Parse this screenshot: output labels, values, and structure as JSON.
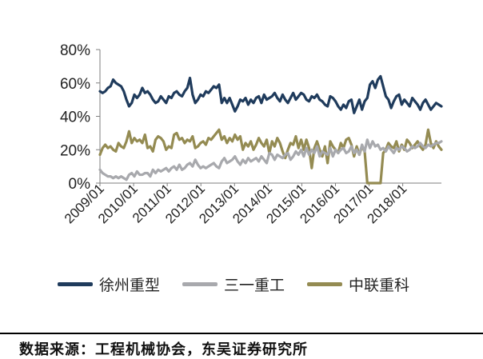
{
  "chart_data": {
    "type": "line",
    "x_labels": [
      "2009/01",
      "2010/01",
      "2011/01",
      "2012/01",
      "2013/01",
      "2014/01",
      "2015/01",
      "2016/01",
      "2017/01",
      "2018/01"
    ],
    "y_ticks": [
      "0%",
      "20%",
      "40%",
      "60%",
      "80%"
    ],
    "ylim": [
      0,
      80
    ],
    "grid": false,
    "legend_position": "bottom",
    "series": [
      {
        "name": "徐州重型",
        "color": "#1f3b5c",
        "values": [
          55,
          54,
          55,
          57,
          58,
          62,
          60,
          59,
          58,
          55,
          50,
          46,
          48,
          53,
          51,
          53,
          57,
          54,
          55,
          53,
          50,
          48,
          49,
          52,
          50,
          48,
          52,
          51,
          54,
          55,
          53,
          52,
          55,
          57,
          63,
          53,
          48,
          50,
          53,
          52,
          55,
          54,
          56,
          58,
          57,
          59,
          48,
          51,
          48,
          51,
          47,
          43,
          46,
          50,
          49,
          51,
          47,
          50,
          48,
          51,
          52,
          48,
          53,
          50,
          51,
          52,
          54,
          51,
          49,
          53,
          50,
          48,
          51,
          54,
          50,
          52,
          54,
          53,
          50,
          49,
          52,
          51,
          53,
          50,
          49,
          47,
          46,
          52,
          51,
          49,
          46,
          44,
          47,
          45,
          49,
          50,
          42,
          46,
          50,
          44,
          49,
          51,
          59,
          61,
          57,
          62,
          64,
          58,
          52,
          50,
          45,
          49,
          52,
          53,
          47,
          50,
          48,
          46,
          51,
          49,
          47,
          44,
          48,
          50,
          47,
          44,
          46,
          48,
          47,
          46
        ]
      },
      {
        "name": "三一重工",
        "color": "#a8a9ad",
        "values": [
          8,
          6,
          5,
          4,
          4,
          3,
          4,
          3,
          4,
          3,
          2,
          5,
          6,
          4,
          7,
          5,
          5,
          6,
          6,
          4,
          8,
          6,
          8,
          7,
          8,
          9,
          7,
          9,
          10,
          8,
          11,
          8,
          9,
          11,
          12,
          10,
          14,
          11,
          9,
          10,
          9,
          10,
          11,
          12,
          10,
          9,
          13,
          15,
          12,
          13,
          14,
          16,
          13,
          11,
          14,
          12,
          15,
          13,
          14,
          15,
          13,
          16,
          14,
          12,
          18,
          17,
          14,
          17,
          16,
          15,
          17,
          18,
          14,
          16,
          19,
          17,
          20,
          16,
          21,
          17,
          20,
          18,
          22,
          16,
          19,
          18,
          17,
          21,
          16,
          20,
          18,
          20,
          21,
          18,
          19,
          22,
          18,
          20,
          17,
          23,
          19,
          26,
          21,
          25,
          22,
          23,
          20,
          21,
          19,
          22,
          20,
          18,
          21,
          20,
          22,
          21,
          19,
          20,
          22,
          21,
          22,
          24,
          22,
          21,
          23,
          22,
          23,
          24,
          24,
          25
        ]
      },
      {
        "name": "中联重科",
        "color": "#948b52",
        "values": [
          17,
          21,
          23,
          21,
          22,
          20,
          19,
          24,
          22,
          21,
          25,
          31,
          24,
          27,
          25,
          26,
          24,
          29,
          21,
          22,
          19,
          26,
          28,
          27,
          25,
          20,
          22,
          21,
          29,
          30,
          26,
          27,
          24,
          26,
          25,
          28,
          21,
          22,
          24,
          25,
          23,
          27,
          26,
          28,
          30,
          32,
          26,
          28,
          24,
          27,
          25,
          29,
          26,
          28,
          20,
          24,
          22,
          25,
          20,
          23,
          27,
          24,
          22,
          26,
          18,
          25,
          22,
          27,
          24,
          19,
          15,
          20,
          24,
          23,
          28,
          21,
          26,
          20,
          26,
          21,
          9,
          21,
          25,
          20,
          16,
          22,
          12,
          25,
          22,
          20,
          18,
          24,
          21,
          26,
          27,
          23,
          16,
          22,
          17,
          22,
          19,
          0,
          0,
          0,
          0,
          0,
          0,
          18,
          20,
          24,
          22,
          21,
          25,
          19,
          23,
          20,
          26,
          24,
          21,
          23,
          25,
          22,
          20,
          23,
          32,
          24,
          21,
          25,
          22,
          20
        ]
      }
    ]
  },
  "legend": {
    "items": [
      {
        "label": "徐州重型",
        "color": "#1f3b5c"
      },
      {
        "label": "三一重工",
        "color": "#a8a9ad"
      },
      {
        "label": "中联重科",
        "color": "#948b52"
      }
    ]
  },
  "source_text": "数据来源：工程机械协会，东吴证券研究所"
}
